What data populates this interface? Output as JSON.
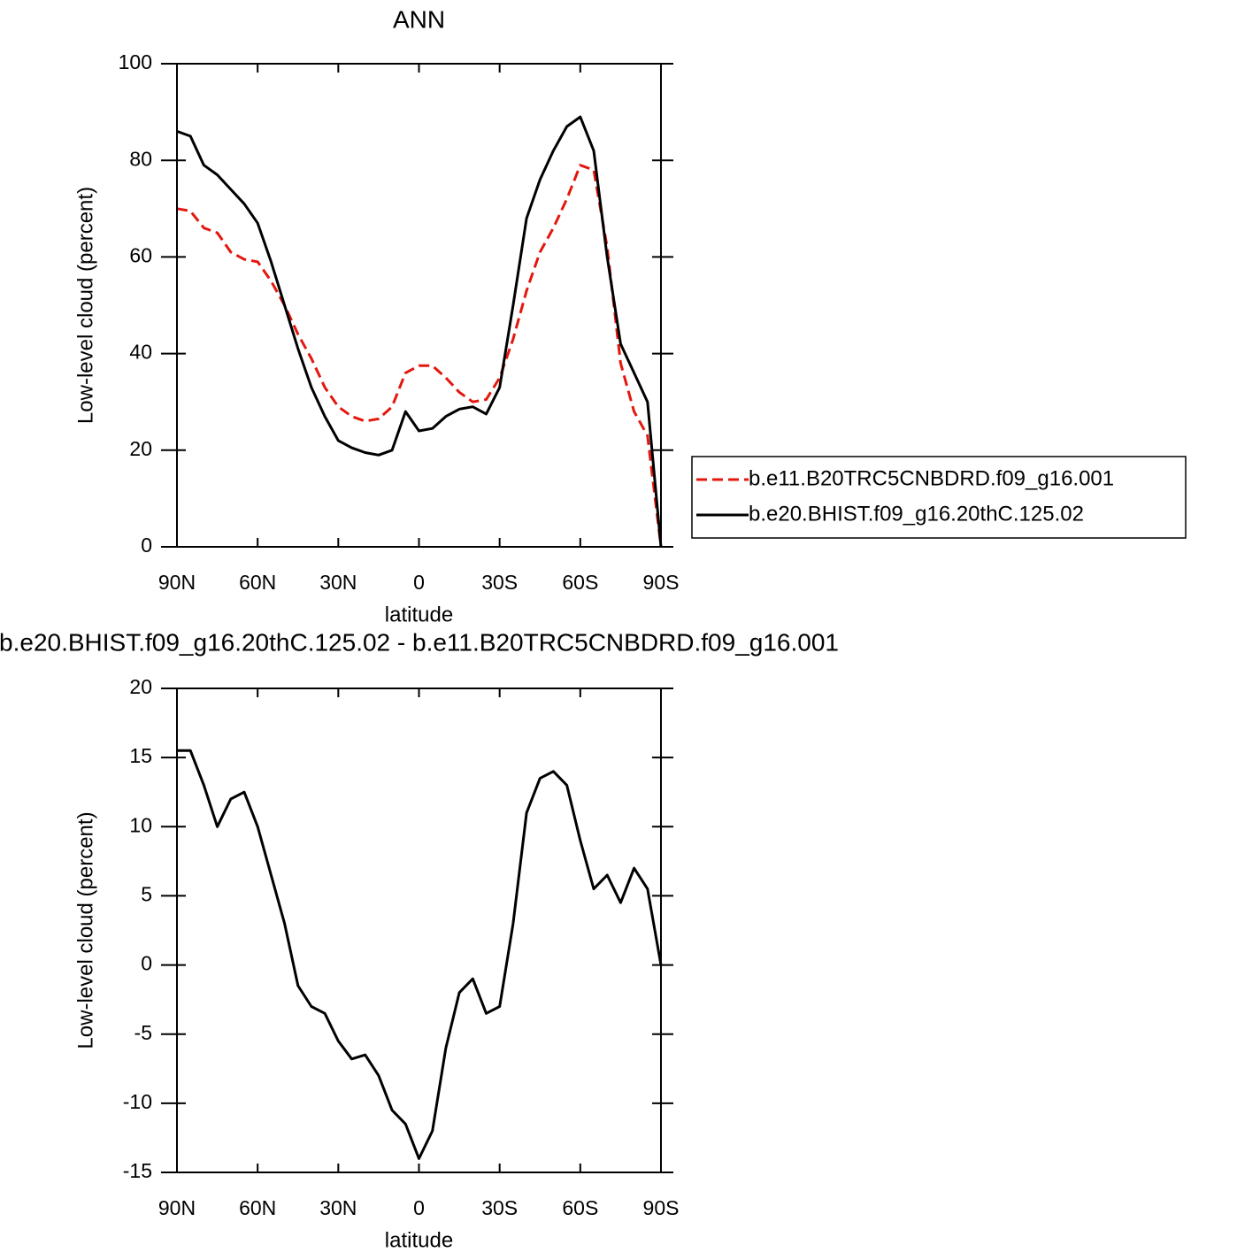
{
  "chart_data": [
    {
      "type": "line",
      "title": "ANN",
      "xlabel": "latitude",
      "ylabel": "Low-level cloud (percent)",
      "x": [
        90,
        85,
        80,
        75,
        70,
        65,
        60,
        55,
        50,
        45,
        40,
        35,
        30,
        25,
        20,
        15,
        10,
        5,
        0,
        -5,
        -10,
        -15,
        -20,
        -25,
        -30,
        -35,
        -40,
        -45,
        -50,
        -55,
        -60,
        -65,
        -70,
        -75,
        -80,
        -85,
        -90
      ],
      "xlim": [
        90,
        -90
      ],
      "xticks": [
        {
          "value": 90,
          "label": "90N"
        },
        {
          "value": 60,
          "label": "60N"
        },
        {
          "value": 30,
          "label": "30N"
        },
        0,
        {
          "value": -30,
          "label": "30S"
        },
        {
          "value": -60,
          "label": "60S"
        },
        {
          "value": -90,
          "label": "90S"
        }
      ],
      "ylim": [
        0,
        100
      ],
      "yticks": [
        0,
        20,
        40,
        60,
        80,
        100
      ],
      "legend": "right",
      "series": [
        {
          "name": "b.e11.B20TRC5CNBDRD.f09_g16.001",
          "color": "#e3170d",
          "dash": "dashed",
          "values": [
            70,
            69.5,
            66,
            65,
            61,
            59.5,
            59,
            55,
            50,
            44,
            39,
            33,
            29,
            27,
            26,
            26.5,
            29,
            36,
            37.5,
            37.5,
            35,
            32,
            30,
            30.5,
            35,
            43,
            53,
            61,
            66,
            72,
            79,
            78,
            62,
            38,
            28,
            23,
            0
          ]
        },
        {
          "name": "b.e20.BHIST.f09_g16.20thC.125.02",
          "color": "#000000",
          "dash": "solid",
          "values": [
            86,
            85,
            79,
            77,
            74,
            71,
            67,
            59,
            50,
            41,
            33,
            27,
            22,
            20.5,
            19.5,
            19,
            20,
            28,
            24,
            24.5,
            27,
            28.5,
            29,
            27.5,
            33,
            50,
            68,
            76,
            82,
            87,
            89,
            82,
            60,
            42,
            36,
            30,
            0
          ]
        }
      ]
    },
    {
      "type": "line",
      "title": "b.e20.BHIST.f09_g16.20thC.125.02 - b.e11.B20TRC5CNBDRD.f09_g16.001",
      "xlabel": "latitude",
      "ylabel": "Low-level cloud (percent)",
      "x": [
        90,
        85,
        80,
        75,
        70,
        65,
        60,
        55,
        50,
        45,
        40,
        35,
        30,
        25,
        20,
        15,
        10,
        5,
        0,
        -5,
        -10,
        -15,
        -20,
        -25,
        -30,
        -35,
        -40,
        -45,
        -50,
        -55,
        -60,
        -65,
        -70,
        -75,
        -80,
        -85,
        -90
      ],
      "xlim": [
        90,
        -90
      ],
      "xticks": [
        {
          "value": 90,
          "label": "90N"
        },
        {
          "value": 60,
          "label": "60N"
        },
        {
          "value": 30,
          "label": "30N"
        },
        0,
        {
          "value": -30,
          "label": "30S"
        },
        {
          "value": -60,
          "label": "60S"
        },
        {
          "value": -90,
          "label": "90S"
        }
      ],
      "ylim": [
        -15,
        20
      ],
      "yticks": [
        -15,
        -10,
        -5,
        0,
        5,
        10,
        15,
        20
      ],
      "color": "#000000",
      "values": [
        15.5,
        15.5,
        13,
        10,
        12,
        12.5,
        10,
        6.5,
        3,
        -1.5,
        -3,
        -3.5,
        -5.5,
        -6.8,
        -6.5,
        -8,
        -10.5,
        -11.5,
        -14,
        -12,
        -6,
        -2,
        -1,
        -3.5,
        -3,
        3,
        11,
        13.5,
        14,
        13,
        9,
        5.5,
        6.5,
        4.5,
        7,
        5.5,
        0
      ]
    }
  ]
}
